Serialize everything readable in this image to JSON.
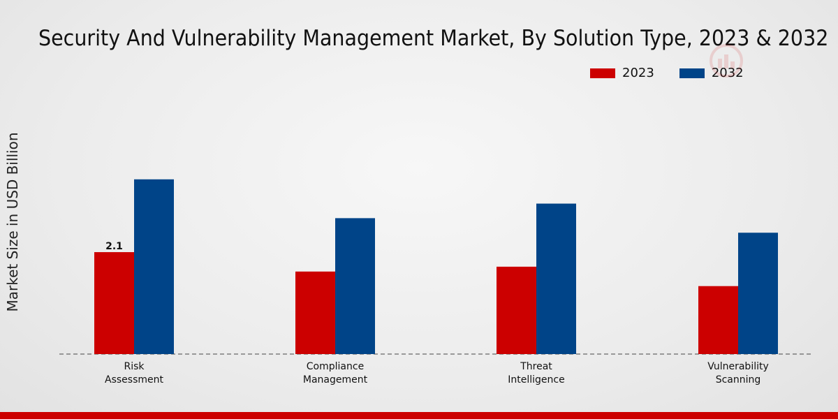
{
  "chart_data": {
    "type": "bar",
    "title": "Security And Vulnerability Management Market, By Solution Type, 2023 & 2032",
    "xlabel": "",
    "ylabel": "Market Size in USD Billion",
    "ylim": [
      0,
      6.0
    ],
    "categories": [
      [
        "Risk",
        "Assessment"
      ],
      [
        "Compliance",
        "Management"
      ],
      [
        "Threat",
        "Intelligence"
      ],
      [
        "Vulnerability",
        "Scanning"
      ]
    ],
    "series": [
      {
        "name": "2023",
        "color": "#cc0000",
        "values": [
          2.1,
          1.7,
          1.8,
          1.4
        ]
      },
      {
        "name": "2032",
        "color": "#004488",
        "values": [
          3.6,
          2.8,
          3.1,
          2.5
        ]
      }
    ],
    "data_labels": [
      {
        "series": 0,
        "index": 0,
        "text": "2.1"
      }
    ],
    "grid": false,
    "legend_position": "top-right"
  }
}
